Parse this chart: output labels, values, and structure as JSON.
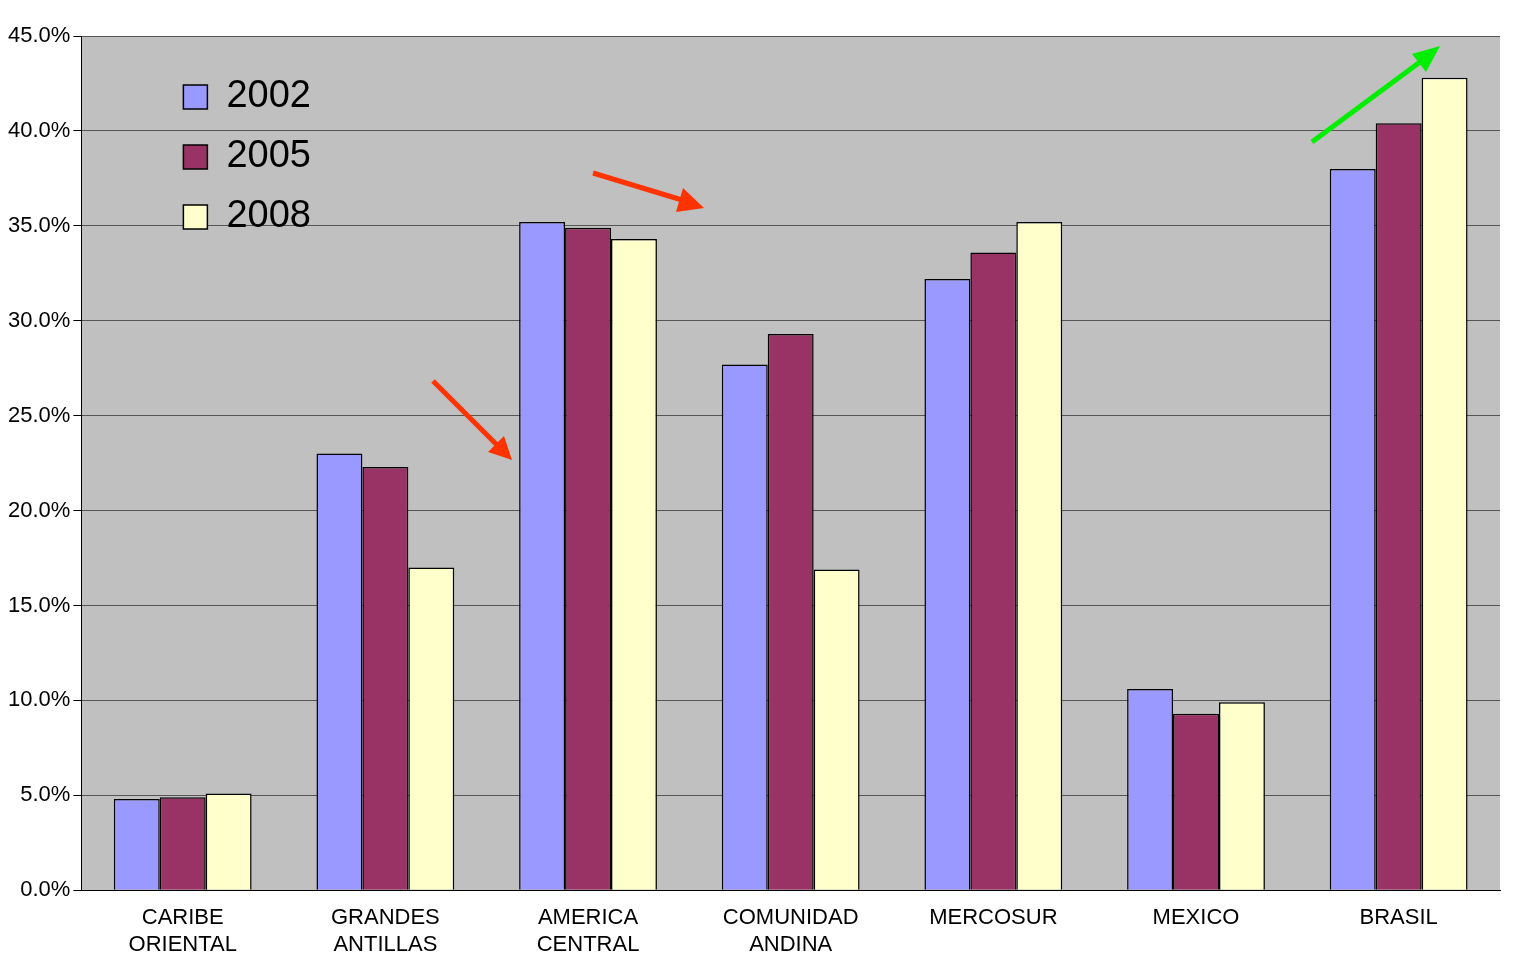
{
  "chart_data": {
    "type": "bar",
    "categories": [
      "CARIBE ORIENTAL",
      "GRANDES ANTILLAS",
      "AMERICA CENTRAL",
      "COMUNIDAD ANDINA",
      "MERCOSUR",
      "MEXICO",
      "BRASIL"
    ],
    "series": [
      {
        "name": "2002",
        "color": "#9999ff",
        "values": [
          4.8,
          23.0,
          35.2,
          27.7,
          32.2,
          10.6,
          38.0
        ]
      },
      {
        "name": "2005",
        "color": "#993366",
        "values": [
          4.9,
          22.3,
          34.9,
          29.3,
          33.6,
          9.3,
          40.4
        ]
      },
      {
        "name": "2008",
        "color": "#ffffcc",
        "values": [
          5.1,
          17.0,
          34.3,
          16.9,
          35.2,
          9.9,
          42.8
        ]
      }
    ],
    "ylim": [
      0,
      45
    ],
    "yticks": [
      {
        "value": 0,
        "label": "0.0%"
      },
      {
        "value": 5,
        "label": "5.0%"
      },
      {
        "value": 10,
        "label": "10.0%"
      },
      {
        "value": 15,
        "label": "15.0%"
      },
      {
        "value": 20,
        "label": "20.0%"
      },
      {
        "value": 25,
        "label": "25.0%"
      },
      {
        "value": 30,
        "label": "30.0%"
      },
      {
        "value": 35,
        "label": "35.0%"
      },
      {
        "value": 40,
        "label": "40.0%"
      },
      {
        "value": 45,
        "label": "45.0%"
      }
    ],
    "grid": "y",
    "legend": "top left"
  }
}
